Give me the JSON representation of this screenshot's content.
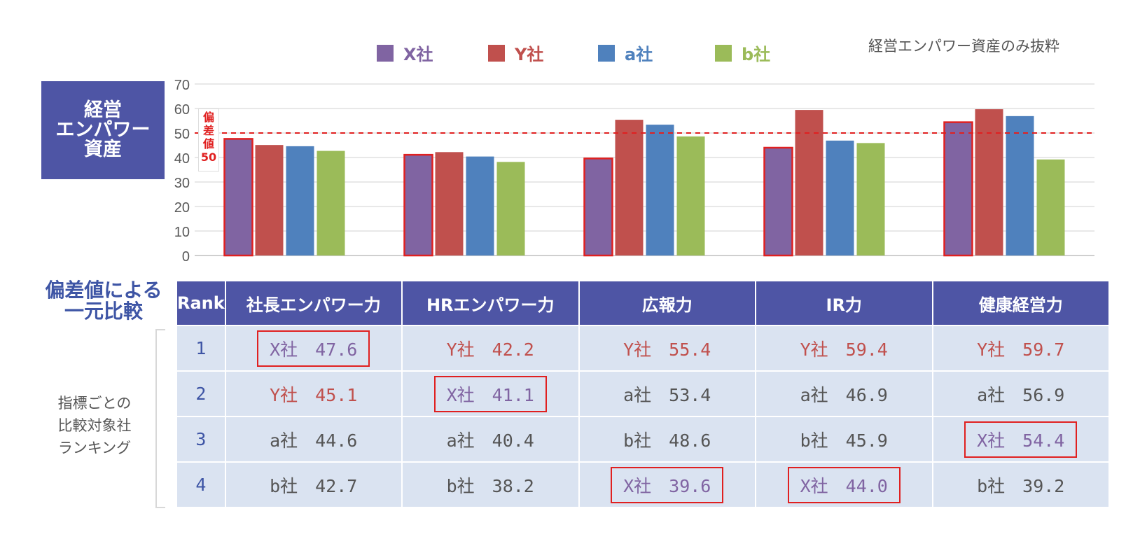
{
  "legend": [
    {
      "label": "X社",
      "color": "#8064a2"
    },
    {
      "label": "Y社",
      "color": "#c0504d"
    },
    {
      "label": "a社",
      "color": "#4f81bd"
    },
    {
      "label": "b社",
      "color": "#9bbb59"
    }
  ],
  "note": "経営エンパワー資産のみ抜粋",
  "chart_title": "経営\nエンパワー\n資産",
  "reference_label": "偏\n差\n値\n50",
  "chart_data": {
    "type": "bar",
    "categories": [
      "社長エンパワー力",
      "HRエンパワー力",
      "広報力",
      "IR力",
      "健康経営力"
    ],
    "series": [
      {
        "name": "X社",
        "values": [
          47.6,
          41.1,
          39.6,
          44.0,
          54.4
        ],
        "color": "#8064a2"
      },
      {
        "name": "Y社",
        "values": [
          45.1,
          42.2,
          55.4,
          59.4,
          59.7
        ],
        "color": "#c0504d"
      },
      {
        "name": "a社",
        "values": [
          44.6,
          40.4,
          53.4,
          46.9,
          56.9
        ],
        "color": "#4f81bd"
      },
      {
        "name": "b社",
        "values": [
          42.7,
          38.2,
          48.6,
          45.9,
          39.2
        ],
        "color": "#9bbb59"
      }
    ],
    "highlighted_series": "X社",
    "reference_line": 50,
    "ylim": [
      0,
      70
    ],
    "yticks": [
      "0",
      "10",
      "20",
      "30",
      "40",
      "50",
      "60",
      "70"
    ],
    "grid": true,
    "legend_position": "top"
  },
  "table": {
    "title": "偏差値による\n一元比較",
    "side_note": "指標ごとの\n比較対象社\nランキング",
    "headers": [
      "Rank",
      "社長エンパワー力",
      "HRエンパワー力",
      "広報力",
      "IR力",
      "健康経営力"
    ],
    "rows": [
      {
        "rank": "1",
        "cells": [
          {
            "text": "X社　47.6",
            "color": "#8064a2",
            "boxed": true
          },
          {
            "text": "Y社　42.2",
            "color": "#c0504d",
            "boxed": false
          },
          {
            "text": "Y社　55.4",
            "color": "#c0504d",
            "boxed": false
          },
          {
            "text": "Y社　59.4",
            "color": "#c0504d",
            "boxed": false
          },
          {
            "text": "Y社　59.7",
            "color": "#c0504d",
            "boxed": false
          }
        ]
      },
      {
        "rank": "2",
        "cells": [
          {
            "text": "Y社　45.1",
            "color": "#c0504d",
            "boxed": false
          },
          {
            "text": "X社　41.1",
            "color": "#8064a2",
            "boxed": true
          },
          {
            "text": "a社　53.4",
            "color": "#555555",
            "boxed": false
          },
          {
            "text": "a社　46.9",
            "color": "#555555",
            "boxed": false
          },
          {
            "text": "a社　56.9",
            "color": "#555555",
            "boxed": false
          }
        ]
      },
      {
        "rank": "3",
        "cells": [
          {
            "text": "a社　44.6",
            "color": "#555555",
            "boxed": false
          },
          {
            "text": "a社　40.4",
            "color": "#555555",
            "boxed": false
          },
          {
            "text": "b社　48.6",
            "color": "#555555",
            "boxed": false
          },
          {
            "text": "b社　45.9",
            "color": "#555555",
            "boxed": false
          },
          {
            "text": "X社　54.4",
            "color": "#8064a2",
            "boxed": true
          }
        ]
      },
      {
        "rank": "4",
        "cells": [
          {
            "text": "b社　42.7",
            "color": "#555555",
            "boxed": false
          },
          {
            "text": "b社　38.2",
            "color": "#555555",
            "boxed": false
          },
          {
            "text": "X社　39.6",
            "color": "#8064a2",
            "boxed": true
          },
          {
            "text": "X社　44.0",
            "color": "#8064a2",
            "boxed": true
          },
          {
            "text": "b社　39.2",
            "color": "#555555",
            "boxed": false
          }
        ]
      }
    ]
  }
}
